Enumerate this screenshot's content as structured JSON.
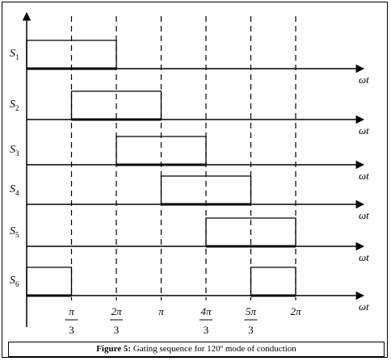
{
  "figure": {
    "caption_label": "Figure 5:",
    "caption_text": " Gating sequence for 120º mode of conduction"
  },
  "axis": {
    "time_label": "ωt"
  },
  "signals": [
    {
      "name": "S",
      "sub": "1",
      "on": [
        [
          0,
          2
        ]
      ]
    },
    {
      "name": "S",
      "sub": "2",
      "on": [
        [
          1,
          3
        ]
      ]
    },
    {
      "name": "S",
      "sub": "3",
      "on": [
        [
          2,
          4
        ]
      ]
    },
    {
      "name": "S",
      "sub": "4",
      "on": [
        [
          3,
          5
        ]
      ]
    },
    {
      "name": "S",
      "sub": "5",
      "on": [
        [
          4,
          6
        ]
      ]
    },
    {
      "name": "S",
      "sub": "6",
      "on": [
        [
          0,
          1
        ],
        [
          5,
          6
        ]
      ]
    }
  ],
  "ticks": [
    {
      "num": "π",
      "den": "3"
    },
    {
      "num": "2π",
      "den": "3"
    },
    {
      "num": "π",
      "den": ""
    },
    {
      "num": "4π",
      "den": "3"
    },
    {
      "num": "5π",
      "den": "3"
    },
    {
      "num": "2π",
      "den": ""
    }
  ]
}
